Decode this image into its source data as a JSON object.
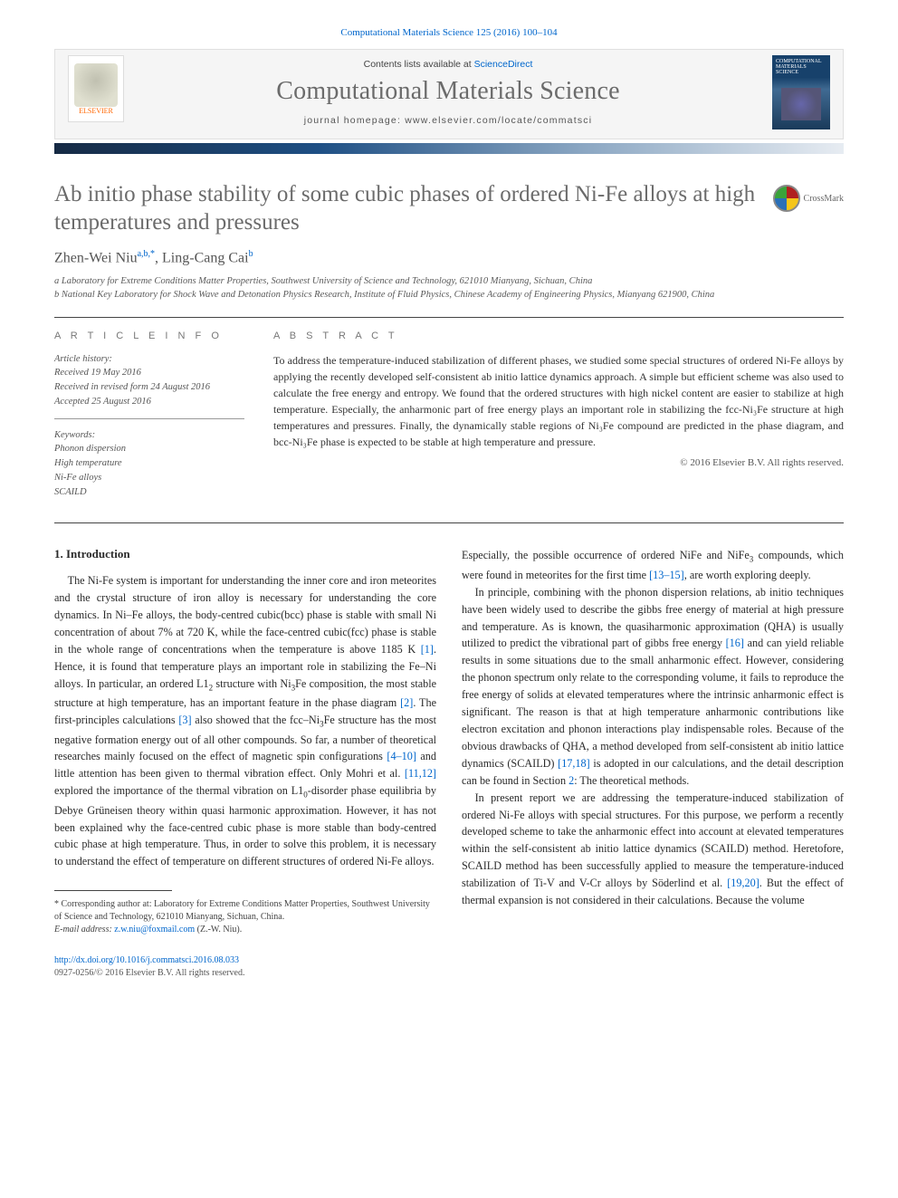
{
  "citation": "Computational Materials Science 125 (2016) 100–104",
  "banner": {
    "contents_prefix": "Contents lists available at ",
    "contents_link": "ScienceDirect",
    "journal": "Computational Materials Science",
    "homepage": "journal homepage: www.elsevier.com/locate/commatsci",
    "publisher": "ELSEVIER",
    "cover_label": "COMPUTATIONAL MATERIALS SCIENCE"
  },
  "colors": {
    "link": "#0066cc",
    "muted": "#6b6b6b",
    "elsevier": "#ff6600",
    "gradient_from": "#162a44",
    "gradient_to": "#e7ecf2"
  },
  "title": "Ab initio phase stability of some cubic phases of ordered Ni-Fe alloys at high temperatures and pressures",
  "crossmark": "CrossMark",
  "authors_html": "Zhen-Wei Niu",
  "author_sup1": "a,b,*",
  "author2": ", Ling-Cang Cai",
  "author_sup2": "b",
  "affiliations": [
    "a Laboratory for Extreme Conditions Matter Properties, Southwest University of Science and Technology, 621010 Mianyang, Sichuan, China",
    "b National Key Laboratory for Shock Wave and Detonation Physics Research, Institute of Fluid Physics, Chinese Academy of Engineering Physics, Mianyang 621900, China"
  ],
  "info_labels": {
    "left": "A R T I C L E  I N F O",
    "right": "A B S T R A C T"
  },
  "history": {
    "heading": "Article history:",
    "received": "Received 19 May 2016",
    "revised": "Received in revised form 24 August 2016",
    "accepted": "Accepted 25 August 2016"
  },
  "keywords": {
    "heading": "Keywords:",
    "items": [
      "Phonon dispersion",
      "High temperature",
      "Ni-Fe alloys",
      "SCAILD"
    ]
  },
  "abstract": "To address the temperature-induced stabilization of different phases, we studied some special structures of ordered Ni-Fe alloys by applying the recently developed self-consistent ab initio lattice dynamics approach. A simple but efficient scheme was also used to calculate the free energy and entropy. We found that the ordered structures with high nickel content are easier to stabilize at high temperature. Especially, the anharmonic part of free energy plays an important role in stabilizing the fcc-Ni₃Fe structure at high temperatures and pressures. Finally, the dynamically stable regions of Ni₃Fe compound are predicted in the phase diagram, and bcc-Ni₃Fe phase is expected to be stable at high temperature and pressure.",
  "copyright": "© 2016 Elsevier B.V. All rights reserved.",
  "section_intro": "1. Introduction",
  "col1_p1": "The Ni-Fe system is important for understanding the inner core and iron meteorites and the crystal structure of iron alloy is necessary for understanding the core dynamics. In Ni–Fe alloys, the body-centred cubic(bcc) phase is stable with small Ni concentration of about 7% at 720 K, while the face-centred cubic(fcc) phase is stable in the whole range of concentrations when the temperature is above 1185 K [1]. Hence, it is found that temperature plays an important role in stabilizing the Fe–Ni alloys. In particular, an ordered L1₂ structure with Ni₃Fe composition, the most stable structure at high temperature, has an important feature in the phase diagram [2]. The first-principles calculations [3] also showed that the fcc–Ni₃Fe structure has the most negative formation energy out of all other compounds. So far, a number of theoretical researches mainly focused on the effect of magnetic spin configurations [4–10] and little attention has been given to thermal vibration effect. Only Mohri et al. [11,12] explored the importance of the thermal vibration on L1₀-disorder phase equilibria by Debye Grüneisen theory within quasi harmonic approximation. However, it has not been explained why the face-centred cubic phase is more stable than body-centred cubic phase at high temperature. Thus, in order to solve this problem, it is necessary to understand the effect of temperature on different structures of ordered Ni-Fe alloys.",
  "col2_p1": "Especially, the possible occurrence of ordered NiFe and NiFe₃ compounds, which were found in meteorites for the first time [13–15], are worth exploring deeply.",
  "col2_p2": "In principle, combining with the phonon dispersion relations, ab initio techniques have been widely used to describe the gibbs free energy of material at high pressure and temperature. As is known, the quasiharmonic approximation (QHA) is usually utilized to predict the vibrational part of gibbs free energy [16] and can yield reliable results in some situations due to the small anharmonic effect. However, considering the phonon spectrum only relate to the corresponding volume, it fails to reproduce the free energy of solids at elevated temperatures where the intrinsic anharmonic effect is significant. The reason is that at high temperature anharmonic contributions like electron excitation and phonon interactions play indispensable roles. Because of the obvious drawbacks of QHA, a method developed from self-consistent ab initio lattice dynamics (SCAILD) [17,18] is adopted in our calculations, and the detail description can be found in Section 2: The theoretical methods.",
  "col2_p3": "In present report we are addressing the temperature-induced stabilization of ordered Ni-Fe alloys with special structures. For this purpose, we perform a recently developed scheme to take the anharmonic effect into account at elevated temperatures within the self-consistent ab initio lattice dynamics (SCAILD) method. Heretofore, SCAILD method has been successfully applied to measure the temperature-induced stabilization of Ti-V and V-Cr alloys by Söderlind et al. [19,20]. But the effect of thermal expansion is not considered in their calculations. Because the volume",
  "footnote": {
    "star": "* Corresponding author at: Laboratory for Extreme Conditions Matter Properties, Southwest University of Science and Technology, 621010 Mianyang, Sichuan, China.",
    "email_label": "E-mail address: ",
    "email": "z.w.niu@foxmail.com",
    "email_tail": " (Z.-W. Niu)."
  },
  "footer": {
    "doi": "http://dx.doi.org/10.1016/j.commatsci.2016.08.033",
    "issn_line": "0927-0256/© 2016 Elsevier B.V. All rights reserved."
  }
}
